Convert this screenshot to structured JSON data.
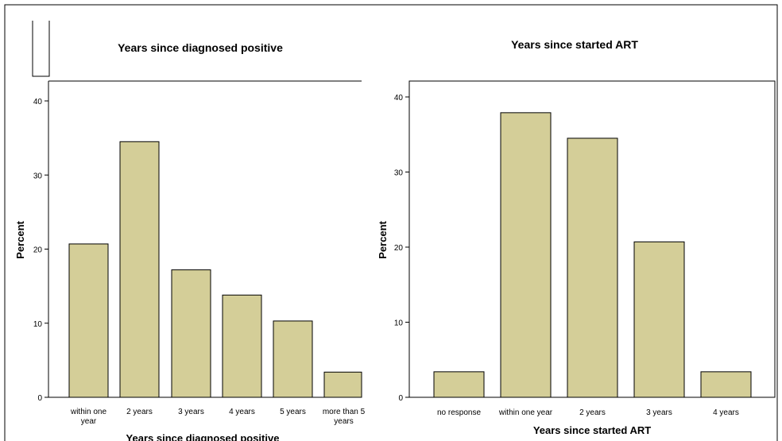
{
  "colors": {
    "bar_fill": "#d4ce98",
    "bar_stroke": "#000000",
    "frame": "#000000"
  },
  "chart_data": [
    {
      "type": "bar",
      "title": "Years since diagnosed positive",
      "xlabel": "Years since diagnosed positive",
      "ylabel": "Percent",
      "ylim": [
        0,
        40
      ],
      "yticks": [
        "0",
        "10",
        "20",
        "30",
        "40"
      ],
      "categories": [
        [
          "within one",
          "year"
        ],
        [
          "2 years"
        ],
        [
          "3 years"
        ],
        [
          "4 years"
        ],
        [
          "5 years"
        ],
        [
          "more than 5",
          "years"
        ]
      ],
      "values": [
        20.7,
        34.5,
        17.2,
        13.8,
        10.3,
        3.4
      ]
    },
    {
      "type": "bar",
      "title": "Years since started ART",
      "xlabel": "Years since started ART",
      "ylabel": "Percent",
      "ylim": [
        0,
        40
      ],
      "yticks": [
        "0",
        "10",
        "20",
        "30",
        "40"
      ],
      "categories": [
        [
          "no response"
        ],
        [
          "within one year"
        ],
        [
          "2 years"
        ],
        [
          "3 years"
        ],
        [
          "4 years"
        ]
      ],
      "values": [
        3.4,
        37.9,
        34.5,
        20.7,
        3.4
      ]
    }
  ]
}
